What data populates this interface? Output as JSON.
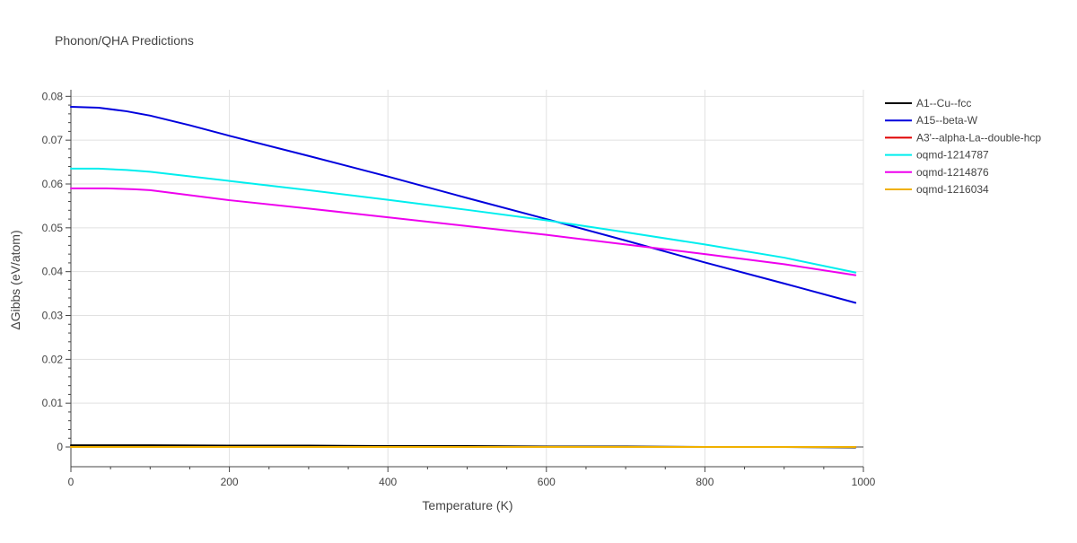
{
  "chart_data": {
    "type": "line",
    "title": "Phonon/QHA Predictions",
    "xlabel": "Temperature (K)",
    "ylabel": "ΔGibbs (eV/atom)",
    "xlim": [
      0,
      1000
    ],
    "ylim": [
      -0.0045,
      0.0815
    ],
    "x_ticks": [
      0,
      200,
      400,
      600,
      800,
      1000
    ],
    "y_ticks": [
      0,
      0.01,
      0.02,
      0.03,
      0.04,
      0.05,
      0.06,
      0.07,
      0.08
    ],
    "x_tick_labels": [
      "0",
      "200",
      "400",
      "600",
      "800",
      "1000"
    ],
    "y_tick_labels": [
      "0",
      "0.01",
      "0.02",
      "0.03",
      "0.04",
      "0.05",
      "0.06",
      "0.07",
      "0.08"
    ],
    "grid": true,
    "legend_position": "top-right",
    "series": [
      {
        "name": "A1--Cu--fcc",
        "color": "#000000",
        "x": [
          0,
          100,
          200,
          300,
          400,
          500,
          600,
          700,
          800,
          900,
          990
        ],
        "y": [
          0.0004,
          0.0004,
          0.0003,
          0.0003,
          0.0002,
          0.0002,
          0.0001,
          0.0001,
          0.0,
          0.0,
          -0.0001
        ]
      },
      {
        "name": "A15--beta-W",
        "color": "#0000dd",
        "x": [
          0,
          35,
          70,
          100,
          150,
          200,
          300,
          400,
          500,
          600,
          700,
          800,
          900,
          990
        ],
        "y": [
          0.0776,
          0.0774,
          0.0766,
          0.0756,
          0.0734,
          0.071,
          0.0664,
          0.0617,
          0.0568,
          0.052,
          0.0471,
          0.0421,
          0.0373,
          0.0329
        ]
      },
      {
        "name": "A3'--alpha-La--double-hcp",
        "color": "#e00000",
        "x": [
          0,
          200,
          400,
          600,
          800,
          990
        ],
        "y": [
          0.0,
          0.0,
          0.0,
          0.0,
          0.0,
          0.0
        ]
      },
      {
        "name": "oqmd-1214787",
        "color": "#00eeee",
        "x": [
          0,
          35,
          70,
          100,
          200,
          300,
          400,
          500,
          600,
          700,
          800,
          900,
          990
        ],
        "y": [
          0.0635,
          0.0635,
          0.0632,
          0.0628,
          0.0607,
          0.0586,
          0.0564,
          0.0541,
          0.0517,
          0.049,
          0.0462,
          0.0432,
          0.0398
        ]
      },
      {
        "name": "oqmd-1214876",
        "color": "#ee00ee",
        "x": [
          0,
          45,
          80,
          100,
          200,
          300,
          400,
          500,
          600,
          700,
          800,
          900,
          990
        ],
        "y": [
          0.059,
          0.059,
          0.0588,
          0.0586,
          0.0563,
          0.0544,
          0.0524,
          0.0504,
          0.0484,
          0.0462,
          0.044,
          0.0417,
          0.0392
        ]
      },
      {
        "name": "oqmd-1216034",
        "color": "#f0b000",
        "x": [
          0,
          200,
          400,
          600,
          800,
          990
        ],
        "y": [
          0.0,
          0.0,
          0.0,
          0.0,
          0.0,
          0.0
        ]
      }
    ]
  }
}
